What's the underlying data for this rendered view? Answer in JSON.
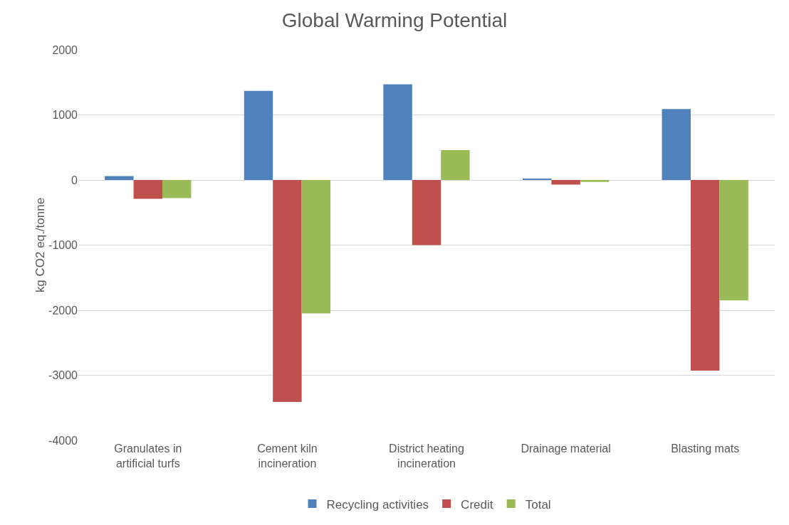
{
  "chart_data": {
    "type": "bar",
    "title": "Global Warming Potential",
    "ylabel": "kg CO2 eq./tonne",
    "categories": [
      "Granulates in artificial turfs",
      "Cement kiln incineration",
      "District heating incineration",
      "Drainage material",
      "Blasting mats"
    ],
    "series": [
      {
        "name": "Recycling activities",
        "color": "#4f81bd",
        "values": [
          60,
          1370,
          1470,
          20,
          1090
        ]
      },
      {
        "name": "Credit",
        "color": "#c0504d",
        "values": [
          -290,
          -3410,
          -1000,
          -70,
          -2930
        ]
      },
      {
        "name": "Total",
        "color": "#9bbb59",
        "values": [
          -280,
          -2050,
          460,
          -30,
          -1850
        ]
      }
    ],
    "ylim": [
      -4000,
      2000
    ],
    "yticks": [
      -4000,
      -3000,
      -2000,
      -1000,
      0,
      1000,
      2000
    ],
    "grid": "y",
    "legend": "bottom"
  }
}
